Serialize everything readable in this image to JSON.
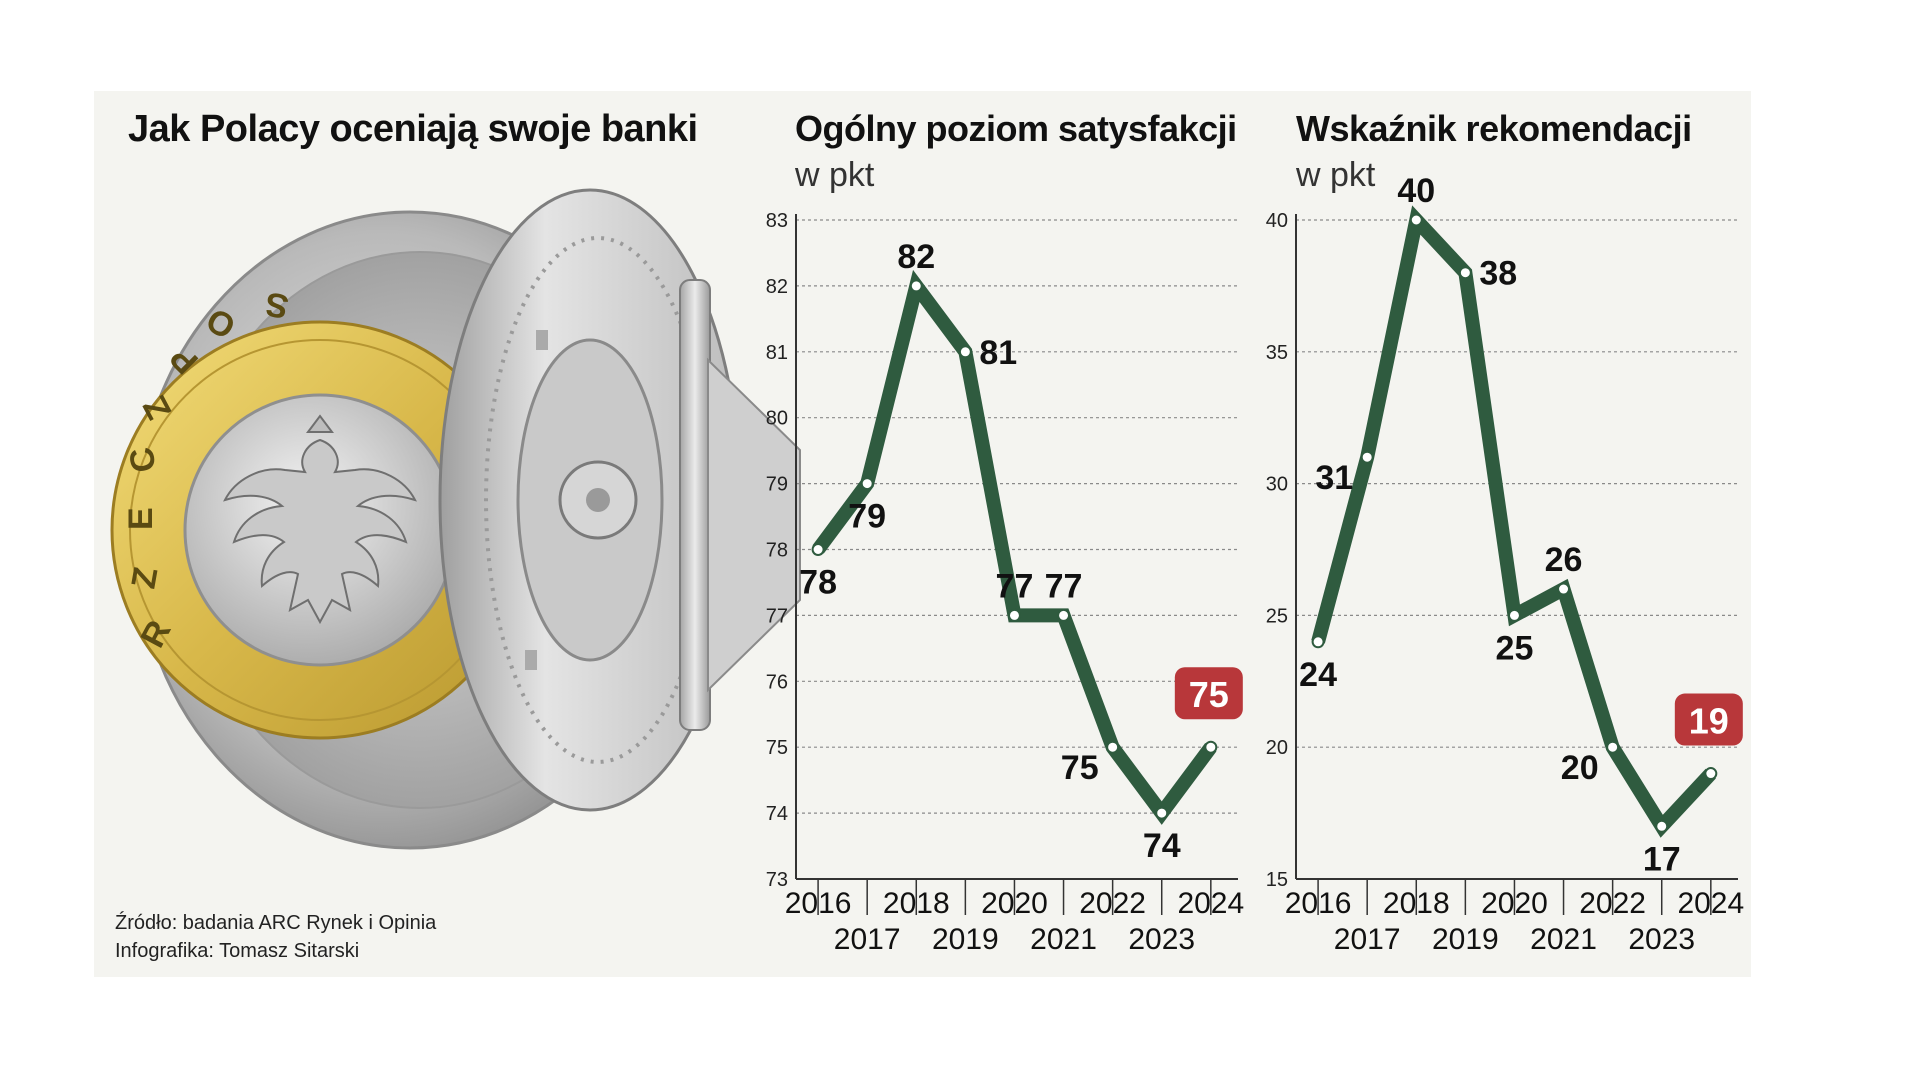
{
  "title": "Jak Polacy oceniają swoje banki",
  "source_line": "Źródło: badania ARC Rynek i Opinia",
  "credit_line": "Infografika: Tomasz Sitarski",
  "colors": {
    "line": "#2f5b3f",
    "highlight": "#b8373a",
    "grid": "#8a8a8a",
    "background": "#f4f4f0"
  },
  "illustration": "coin-in-open-bank-vault-illustration",
  "chart_data": [
    {
      "type": "line",
      "title": "Ogólny poziom satysfakcji",
      "unit": "w pkt",
      "x": [
        "2016",
        "2017",
        "2018",
        "2019",
        "2020",
        "2021",
        "2022",
        "2023",
        "2024"
      ],
      "values": [
        78,
        79,
        82,
        81,
        77,
        77,
        75,
        74,
        75
      ],
      "labels": [
        "78",
        "79",
        "82",
        "81",
        "77",
        "77",
        "75",
        "74",
        "75"
      ],
      "yticks": [
        "73",
        "74",
        "75",
        "76",
        "77",
        "78",
        "79",
        "80",
        "81",
        "82",
        "83"
      ],
      "ylim": [
        73,
        83
      ],
      "highlight_index": 8,
      "grid": true
    },
    {
      "type": "line",
      "title": "Wskaźnik rekomendacji",
      "unit": "w pkt",
      "x": [
        "2016",
        "2017",
        "2018",
        "2019",
        "2020",
        "2021",
        "2022",
        "2023",
        "2024"
      ],
      "values": [
        24,
        31,
        40,
        38,
        25,
        26,
        20,
        17,
        19
      ],
      "labels": [
        "24",
        "31",
        "40",
        "38",
        "25",
        "26",
        "20",
        "17",
        "19"
      ],
      "yticks": [
        "15",
        "20",
        "25",
        "30",
        "35",
        "40"
      ],
      "ylim": [
        15,
        40
      ],
      "highlight_index": 8,
      "grid": true
    }
  ]
}
